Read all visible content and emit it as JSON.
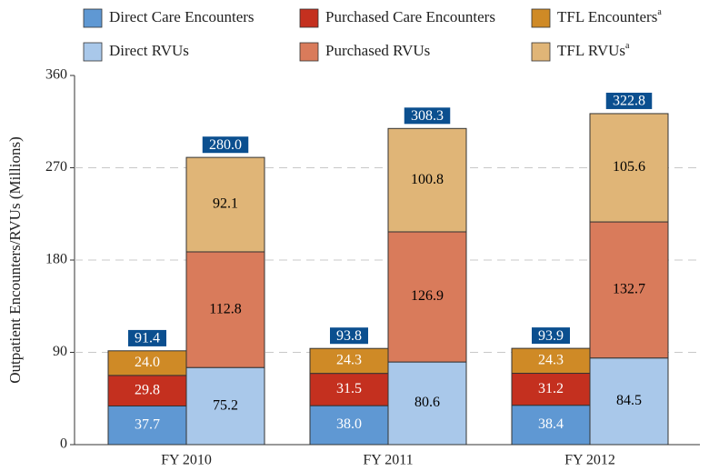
{
  "chart_data": {
    "type": "grouped-stacked-bar",
    "y_label": "Outpatient Encounters/RVUs (Millions)",
    "categories": [
      "FY 2010",
      "FY 2011",
      "FY 2012"
    ],
    "ylim": [
      0,
      360
    ],
    "yticks": [
      0,
      90,
      180,
      270,
      360
    ],
    "grid": true,
    "series": [
      {
        "name": "Direct Care Encounters",
        "color": "#5f98d3",
        "label_color": "#ffffff",
        "stack": 0,
        "values": [
          37.7,
          38.0,
          38.4
        ],
        "value_labels": [
          "37.7",
          "38.0",
          "38.4"
        ]
      },
      {
        "name": "Purchased Care Encounters",
        "color": "#c4301f",
        "label_color": "#ffffff",
        "stack": 0,
        "values": [
          29.8,
          31.5,
          31.2
        ],
        "value_labels": [
          "29.8",
          "31.5",
          "31.2"
        ]
      },
      {
        "name": "TFL Encounters",
        "note_mark": "a",
        "color": "#cf8a26",
        "label_color": "#ffffff",
        "stack": 0,
        "values": [
          24.0,
          24.3,
          24.3
        ],
        "value_labels": [
          "24.0",
          "24.3",
          "24.3"
        ]
      },
      {
        "name": "Direct RVUs",
        "color": "#a9c8ea",
        "label_color": "#000000",
        "stack": 1,
        "values": [
          75.2,
          80.6,
          84.5
        ],
        "value_labels": [
          "75.2",
          "80.6",
          "84.5"
        ]
      },
      {
        "name": "Purchased RVUs",
        "color": "#d97b5b",
        "label_color": "#000000",
        "stack": 1,
        "values": [
          112.8,
          126.9,
          132.7
        ],
        "value_labels": [
          "112.8",
          "126.9",
          "132.7"
        ]
      },
      {
        "name": "TFL RVUs",
        "note_mark": "a",
        "color": "#e0b577",
        "label_color": "#000000",
        "stack": 1,
        "values": [
          92.1,
          100.8,
          105.6
        ],
        "value_labels": [
          "92.1",
          "100.8",
          "105.6"
        ]
      }
    ],
    "totals": [
      {
        "stack": 0,
        "values": [
          91.4,
          93.8,
          93.9
        ],
        "value_labels": [
          "91.4",
          "93.8",
          "93.9"
        ]
      },
      {
        "stack": 1,
        "values": [
          280.0,
          308.3,
          322.8
        ],
        "value_labels": [
          "280.0",
          "308.3",
          "322.8"
        ]
      }
    ]
  }
}
